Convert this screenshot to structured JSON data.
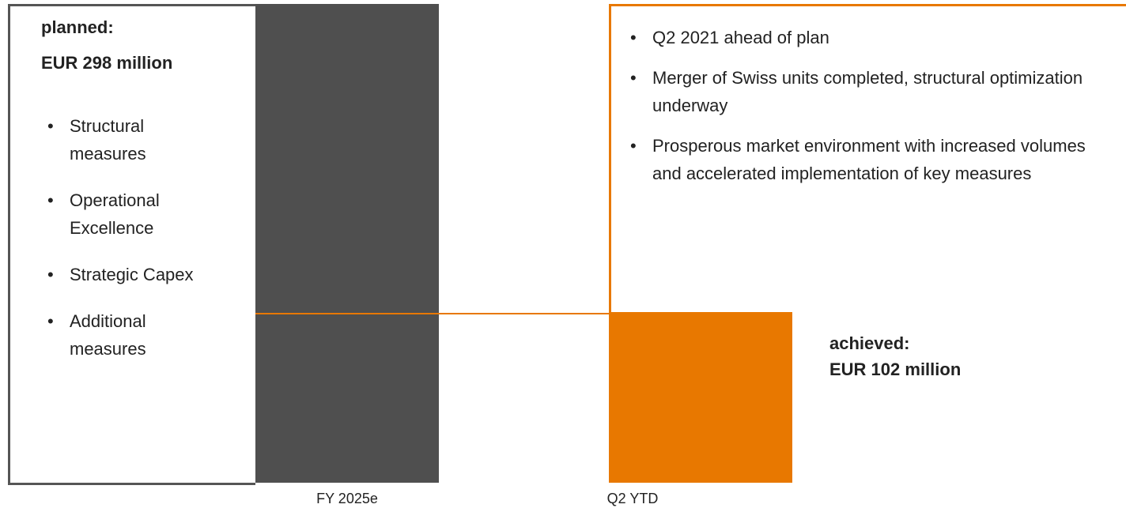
{
  "left": {
    "title": "planned:",
    "amount": "EUR 298 million",
    "bullets": [
      "Structural measures",
      "Operational Excellence",
      "Strategic Capex",
      "Additional measures"
    ],
    "label": "FY 2025e"
  },
  "right": {
    "bullets": [
      "Q2 2021 ahead of plan",
      "Merger of Swiss units completed, structural optimization underway",
      "Prosperous market environment with increased volumes and accelerated implementation of key measures"
    ],
    "title": "achieved:",
    "amount": "EUR 102 million",
    "label": "Q2 YTD"
  }
}
